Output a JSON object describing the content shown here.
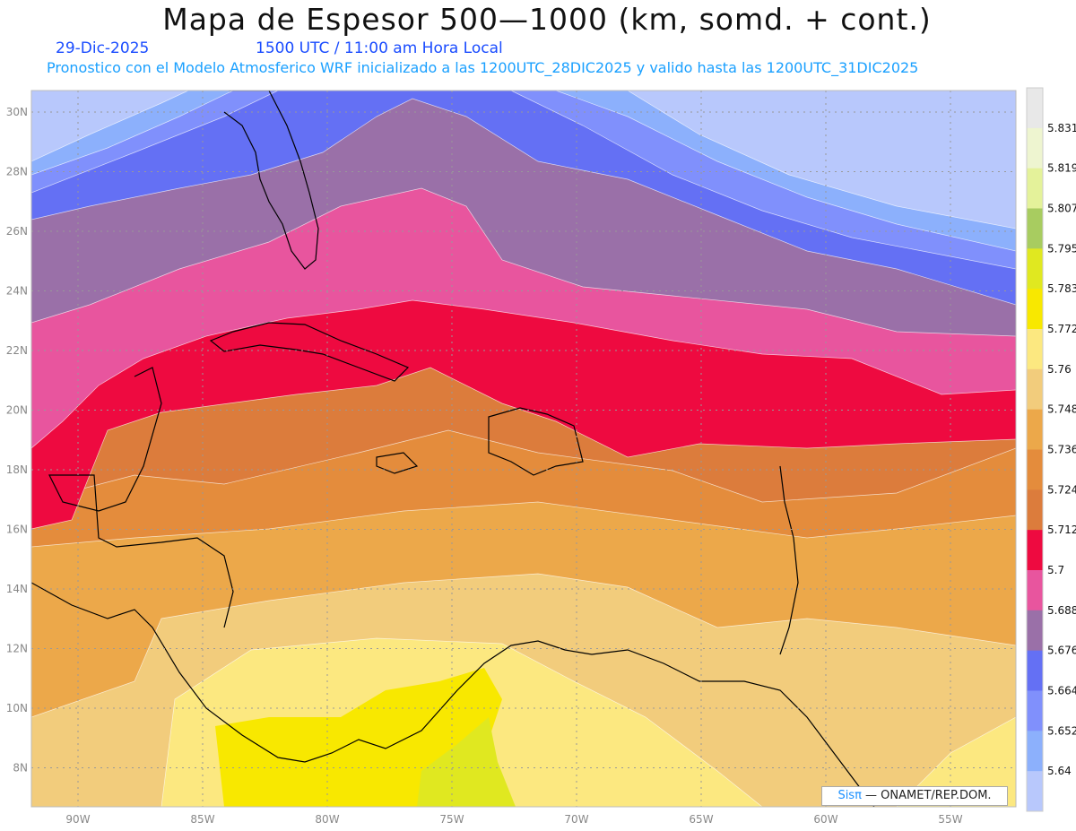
{
  "header": {
    "title": "Mapa de Espesor 500—1000 (km, somd. + cont.)",
    "date": "29-Dic-2025",
    "time": "1500 UTC / 11:00 am Hora Local",
    "subtitle": "Pronostico con el Modelo Atmosferico WRF inicializado a las 1200UTC_28DIC2025 y valido hasta las  1200UTC_31DIC2025"
  },
  "map": {
    "lon_labels": [
      "90W",
      "85W",
      "80W",
      "75W",
      "70W",
      "65W",
      "60W",
      "55W"
    ],
    "lat_labels": [
      "30N",
      "28N",
      "26N",
      "24N",
      "22N",
      "20N",
      "18N",
      "16N",
      "14N",
      "12N",
      "10N",
      "8N"
    ]
  },
  "colorbar": {
    "labels": [
      "5.831",
      "5.819",
      "5.807",
      "5.795",
      "5.783",
      "5.772",
      "5.76",
      "5.748",
      "5.736",
      "5.724",
      "5.712",
      "5.7",
      "5.688",
      "5.676",
      "5.664",
      "5.652",
      "5.64"
    ],
    "colors": [
      "#e8e8e8",
      "#eef5d0",
      "#e4f29a",
      "#a8cc60",
      "#e0e820",
      "#f8e800",
      "#fce880",
      "#f2cc7c",
      "#eca84a",
      "#e48c3c",
      "#dc7c3c",
      "#ee0a40",
      "#e8559e",
      "#9a70a8",
      "#6470f4",
      "#8090fc",
      "#8cb0fc",
      "#b8c8fc"
    ]
  },
  "credit": {
    "brand": "Sisπ",
    "text": " — ONAMET/REP.DOM."
  }
}
